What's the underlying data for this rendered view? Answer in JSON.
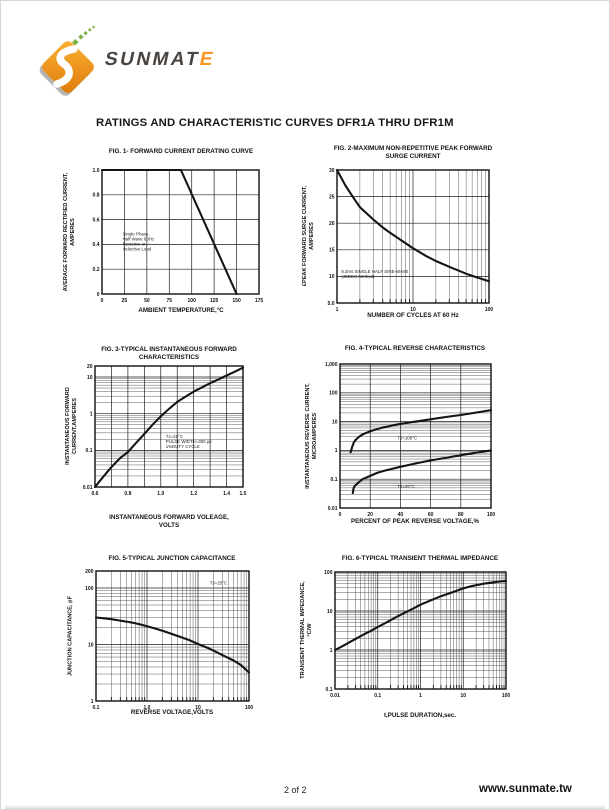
{
  "page": {
    "brand": {
      "text_main": "SUNMAT",
      "text_accent": "E"
    },
    "title": "RATINGS AND CHARACTERISTIC CURVES DFR1A THRU DFR1M",
    "footer": {
      "page_number": "2 of 2",
      "website": "www.sunmate.tw"
    },
    "colors": {
      "logo_orange": "#f7941d",
      "logo_green": "#7cb342",
      "ink": "#111111"
    }
  },
  "chart_data": [
    {
      "type": "line",
      "title": [
        "FIG. 1- FORWARD CURRENT DERATING CURVE"
      ],
      "xlabel": [
        "AMBIENT TEMPERATURE,°C"
      ],
      "ylabel": [
        "AVERAGE FORWARD RECTIFIED CURRENT,",
        "AMPERES"
      ],
      "x": {
        "scale": "linear",
        "min": 0,
        "max": 175,
        "ticks": [
          {
            "v": 0,
            "l": "0"
          },
          {
            "v": 25,
            "l": "25"
          },
          {
            "v": 50,
            "l": "50"
          },
          {
            "v": 75,
            "l": "75"
          },
          {
            "v": 100,
            "l": "100"
          },
          {
            "v": 125,
            "l": "125"
          },
          {
            "v": 150,
            "l": "150"
          },
          {
            "v": 175,
            "l": "175"
          }
        ]
      },
      "y": {
        "scale": "linear",
        "min": 0,
        "max": 1.0,
        "ticks": [
          {
            "v": 0,
            "l": "0"
          },
          {
            "v": 0.2,
            "l": "0.2"
          },
          {
            "v": 0.4,
            "l": "0.4"
          },
          {
            "v": 0.6,
            "l": "0.6"
          },
          {
            "v": 0.8,
            "l": "0.8"
          },
          {
            "v": 1.0,
            "l": "1.0"
          }
        ]
      },
      "series": [
        {
          "name": "forward-current-derating",
          "points": [
            [
              0,
              1.0
            ],
            [
              88,
              1.0
            ],
            [
              150,
              0
            ]
          ]
        }
      ],
      "annotations": [
        {
          "x": 23,
          "y": 0.47,
          "lines": [
            "Single Phase,",
            "Half Wave 60Hz",
            "Resistive or",
            "Inductive Load"
          ]
        }
      ]
    },
    {
      "type": "line",
      "title": [
        "FIG. 2-MAXIMUM NON-REPETITIVE PEAK FORWARD",
        "SURGE CURRENT"
      ],
      "xlabel": [
        "NUMBER OF CYCLES AT 60 Hz"
      ],
      "ylabel": [
        "£PEAK  FORWARD SURGE CURRENT,",
        "AMPERES"
      ],
      "x": {
        "scale": "log",
        "min": 1,
        "max": 100,
        "ticks": [
          {
            "v": 1,
            "l": "1"
          },
          {
            "v": 10,
            "l": "10"
          },
          {
            "v": 100,
            "l": "100"
          }
        ]
      },
      "y": {
        "scale": "linear",
        "min": 5,
        "max": 30,
        "ticks": [
          {
            "v": 5,
            "l": "5.0"
          },
          {
            "v": 10,
            "l": "10"
          },
          {
            "v": 15,
            "l": "15"
          },
          {
            "v": 20,
            "l": "20"
          },
          {
            "v": 25,
            "l": "25"
          },
          {
            "v": 30,
            "l": "30"
          }
        ]
      },
      "series": [
        {
          "name": "peak-forward-surge-current",
          "points": [
            [
              1,
              30
            ],
            [
              1.3,
              27
            ],
            [
              1.7,
              24.5
            ],
            [
              2,
              23
            ],
            [
              3,
              20.7
            ],
            [
              4,
              19.2
            ],
            [
              5,
              18.2
            ],
            [
              7,
              16.8
            ],
            [
              10,
              15.3
            ],
            [
              15,
              13.8
            ],
            [
              20,
              12.9
            ],
            [
              30,
              11.8
            ],
            [
              50,
              10.5
            ],
            [
              70,
              9.8
            ],
            [
              100,
              9.1
            ]
          ]
        }
      ],
      "annotations": [
        {
          "x": 1.14,
          "y": 10.6,
          "lines": [
            "8.3ms SINGLE HALF SINE-WAVE",
            "(JEDEC Method)"
          ]
        }
      ]
    },
    {
      "type": "line",
      "title": [
        "FIG. 3-TYPICAL INSTANTANEOUS FORWARD",
        "CHARACTERISTICS"
      ],
      "xlabel": [
        "INSTANTANEOUS FORWARD VOLEAGE,",
        "VOLTS"
      ],
      "ylabel": [
        "INSTANTANEOUS FORWARD",
        "CURRENT,AMPERES"
      ],
      "x": {
        "scale": "linear",
        "min": 0.6,
        "max": 1.5,
        "ticks": [
          {
            "v": 0.6,
            "l": "0.6"
          },
          {
            "v": 0.7,
            "l": ""
          },
          {
            "v": 0.8,
            "l": "0.8"
          },
          {
            "v": 0.9,
            "l": ""
          },
          {
            "v": 1.0,
            "l": "1.0"
          },
          {
            "v": 1.1,
            "l": ""
          },
          {
            "v": 1.2,
            "l": "1.2"
          },
          {
            "v": 1.3,
            "l": ""
          },
          {
            "v": 1.4,
            "l": "1.4"
          },
          {
            "v": 1.5,
            "l": "1.5"
          }
        ]
      },
      "y": {
        "scale": "log",
        "min": 0.01,
        "max": 20,
        "ticks": [
          {
            "v": 0.01,
            "l": "0.01"
          },
          {
            "v": 0.1,
            "l": "0.1"
          },
          {
            "v": 1,
            "l": "1"
          },
          {
            "v": 10,
            "l": "10"
          },
          {
            "v": 20,
            "l": "20"
          }
        ]
      },
      "series": [
        {
          "name": "instantaneous-forward-characteristic",
          "points": [
            [
              0.6,
              0.01
            ],
            [
              0.65,
              0.019
            ],
            [
              0.7,
              0.035
            ],
            [
              0.75,
              0.06
            ],
            [
              0.8,
              0.09
            ],
            [
              0.85,
              0.16
            ],
            [
              0.9,
              0.28
            ],
            [
              0.95,
              0.5
            ],
            [
              1.0,
              0.85
            ],
            [
              1.05,
              1.35
            ],
            [
              1.1,
              2.1
            ],
            [
              1.15,
              2.9
            ],
            [
              1.2,
              4.0
            ],
            [
              1.25,
              5.2
            ],
            [
              1.3,
              6.8
            ],
            [
              1.35,
              8.6
            ],
            [
              1.4,
              11
            ],
            [
              1.45,
              14
            ],
            [
              1.5,
              18
            ]
          ]
        }
      ],
      "annotations": [
        {
          "x": 1.03,
          "y": 0.22,
          "lines": [
            "TJ=25°C",
            "PULSE WIDTH=300 μs",
            "1%DUTY CYCLE"
          ]
        }
      ]
    },
    {
      "type": "line",
      "title": [
        "FIG. 4-TYPICAL REVERSE CHARACTERISTICS"
      ],
      "xlabel": [
        "PERCENT OF PEAK REVERSE VOLTAGE,%"
      ],
      "ylabel": [
        "INSTANTANEOUS REVERSE CURRENT,",
        "MICROAMPERES"
      ],
      "x": {
        "scale": "linear",
        "min": 0,
        "max": 100,
        "ticks": [
          {
            "v": 0,
            "l": "0"
          },
          {
            "v": 20,
            "l": "20"
          },
          {
            "v": 40,
            "l": "40"
          },
          {
            "v": 60,
            "l": "60"
          },
          {
            "v": 80,
            "l": "80"
          },
          {
            "v": 100,
            "l": "100"
          }
        ]
      },
      "y": {
        "scale": "log",
        "min": 0.01,
        "max": 1000,
        "ticks": [
          {
            "v": 0.01,
            "l": "0.01"
          },
          {
            "v": 0.1,
            "l": "0.1"
          },
          {
            "v": 1,
            "l": "1"
          },
          {
            "v": 10,
            "l": "10"
          },
          {
            "v": 100,
            "l": "100"
          },
          {
            "v": 1000,
            "l": "1,000"
          }
        ]
      },
      "series": [
        {
          "name": "reverse-current-tj-100c",
          "points": [
            [
              7,
              0.85
            ],
            [
              8,
              1.3
            ],
            [
              9,
              1.8
            ],
            [
              10,
              2.2
            ],
            [
              12,
              2.8
            ],
            [
              15,
              3.6
            ],
            [
              20,
              4.6
            ],
            [
              25,
              5.6
            ],
            [
              30,
              6.5
            ],
            [
              40,
              8.3
            ],
            [
              50,
              10
            ],
            [
              60,
              12
            ],
            [
              70,
              14.5
            ],
            [
              80,
              17
            ],
            [
              90,
              20.5
            ],
            [
              100,
              25
            ]
          ]
        },
        {
          "name": "reverse-current-tj-25c",
          "points": [
            [
              8.5,
              0.033
            ],
            [
              9,
              0.05
            ],
            [
              10,
              0.06
            ],
            [
              12,
              0.075
            ],
            [
              15,
              0.1
            ],
            [
              20,
              0.13
            ],
            [
              25,
              0.17
            ],
            [
              30,
              0.2
            ],
            [
              40,
              0.27
            ],
            [
              50,
              0.35
            ],
            [
              60,
              0.45
            ],
            [
              70,
              0.55
            ],
            [
              80,
              0.68
            ],
            [
              90,
              0.83
            ],
            [
              100,
              1.0
            ]
          ]
        }
      ],
      "annotations": [
        {
          "x": 38,
          "y": 2.4,
          "lines": [
            "TJ=100°C"
          ]
        },
        {
          "x": 38,
          "y": 0.05,
          "lines": [
            "TJ=25°C"
          ]
        }
      ]
    },
    {
      "type": "line",
      "title": [
        "FIG. 5-TYPICAL JUNCTION CAPACITANCE"
      ],
      "xlabel": [
        "REVERSE VOLTAGE,VOLTS"
      ],
      "ylabel": [
        "JUNCTION CAPACITANCE, pF"
      ],
      "x": {
        "scale": "log",
        "min": 0.1,
        "max": 100,
        "ticks": [
          {
            "v": 0.1,
            "l": "0.1"
          },
          {
            "v": 1,
            "l": "1.0"
          },
          {
            "v": 10,
            "l": "10"
          },
          {
            "v": 100,
            "l": "100"
          }
        ]
      },
      "y": {
        "scale": "log",
        "min": 1,
        "max": 200,
        "ticks": [
          {
            "v": 1,
            "l": "1"
          },
          {
            "v": 10,
            "l": "10"
          },
          {
            "v": 100,
            "l": "100"
          },
          {
            "v": 200,
            "l": "200"
          }
        ]
      },
      "series": [
        {
          "name": "junction-capacitance",
          "points": [
            [
              0.1,
              30
            ],
            [
              0.15,
              29
            ],
            [
              0.2,
              28
            ],
            [
              0.3,
              26.5
            ],
            [
              0.5,
              24.5
            ],
            [
              0.7,
              23
            ],
            [
              1,
              21
            ],
            [
              1.5,
              19
            ],
            [
              2,
              17.5
            ],
            [
              3,
              15.5
            ],
            [
              5,
              13.2
            ],
            [
              7,
              11.8
            ],
            [
              10,
              10.2
            ],
            [
              15,
              8.8
            ],
            [
              20,
              7.8
            ],
            [
              30,
              6.5
            ],
            [
              50,
              5.2
            ],
            [
              70,
              4.3
            ],
            [
              100,
              3.2
            ]
          ]
        }
      ],
      "annotations": [
        {
          "x": 17,
          "y": 115,
          "lines": [
            "TJ=25°C"
          ]
        }
      ]
    },
    {
      "type": "line",
      "title": [
        "FIG. 6-TYPICAL TRANSIENT THERMAL IMPEDANCE"
      ],
      "xlabel": [
        "t,PULSE DURATION,sec."
      ],
      "ylabel": [
        "TRANSIENT THERMAL IMPEDANCE,",
        "°C/W"
      ],
      "x": {
        "scale": "log",
        "min": 0.01,
        "max": 100,
        "ticks": [
          {
            "v": 0.01,
            "l": "0.01"
          },
          {
            "v": 0.1,
            "l": "0.1"
          },
          {
            "v": 1,
            "l": "1"
          },
          {
            "v": 10,
            "l": "10"
          },
          {
            "v": 100,
            "l": "100"
          }
        ]
      },
      "y": {
        "scale": "log",
        "min": 0.1,
        "max": 100,
        "ticks": [
          {
            "v": 0.1,
            "l": "0.1"
          },
          {
            "v": 1,
            "l": "1"
          },
          {
            "v": 10,
            "l": "10"
          },
          {
            "v": 100,
            "l": "100"
          }
        ]
      },
      "series": [
        {
          "name": "transient-thermal-impedance",
          "points": [
            [
              0.01,
              1
            ],
            [
              0.015,
              1.25
            ],
            [
              0.02,
              1.5
            ],
            [
              0.03,
              1.9
            ],
            [
              0.05,
              2.6
            ],
            [
              0.07,
              3.1
            ],
            [
              0.1,
              3.9
            ],
            [
              0.15,
              4.9
            ],
            [
              0.2,
              5.8
            ],
            [
              0.3,
              7.4
            ],
            [
              0.5,
              9.8
            ],
            [
              0.7,
              11.8
            ],
            [
              1,
              14.5
            ],
            [
              1.5,
              17.5
            ],
            [
              2,
              20
            ],
            [
              3,
              24
            ],
            [
              5,
              29
            ],
            [
              7,
              33
            ],
            [
              10,
              38
            ],
            [
              15,
              43
            ],
            [
              20,
              46
            ],
            [
              30,
              50
            ],
            [
              50,
              54
            ],
            [
              70,
              57
            ],
            [
              100,
              59
            ]
          ]
        }
      ],
      "annotations": []
    }
  ]
}
